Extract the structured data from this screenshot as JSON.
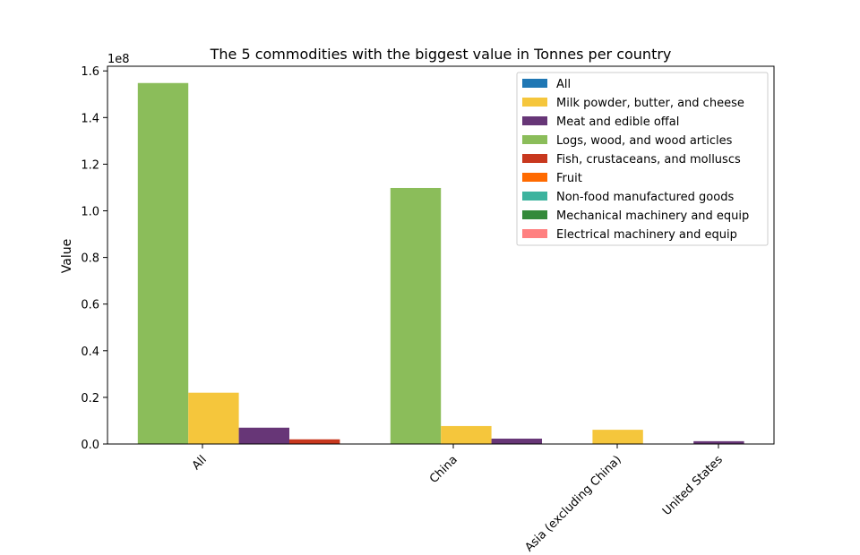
{
  "chart_data": {
    "type": "bar",
    "title": "The 5 commodities with the biggest value in Tonnes per country",
    "xlabel": "",
    "ylabel": "Value",
    "y_offset_text": "1e8",
    "y_scale": 100000000,
    "ylim": [
      0,
      162000000
    ],
    "yticks": [
      0,
      20000000,
      40000000,
      60000000,
      80000000,
      100000000,
      120000000,
      140000000,
      160000000
    ],
    "ytick_labels": [
      "0.0",
      "0.2",
      "0.4",
      "0.6",
      "0.8",
      "1.0",
      "1.2",
      "1.4",
      "1.6"
    ],
    "grid": false,
    "legend_position": "top-right",
    "categories": [
      "All",
      "China",
      "Asia (excluding China)",
      "United States"
    ],
    "series": [
      {
        "name": "All",
        "color": "#1f77b4",
        "values": [
          null,
          null,
          null,
          null
        ]
      },
      {
        "name": "Milk powder, butter, and cheese",
        "color": "#f5c63c",
        "values": [
          22000000,
          7700000,
          6100000,
          null
        ]
      },
      {
        "name": "Meat and edible offal",
        "color": "#673677",
        "values": [
          7000000,
          2300000,
          null,
          1200000
        ]
      },
      {
        "name": "Logs, wood, and wood articles",
        "color": "#8bbd5a",
        "values": [
          154800000,
          109800000,
          null,
          null
        ]
      },
      {
        "name": "Fish, crustaceans, and molluscs",
        "color": "#c8381e",
        "values": [
          2000000,
          null,
          null,
          null
        ]
      },
      {
        "name": "Fruit",
        "color": "#ff6a00",
        "values": [
          null,
          null,
          null,
          null
        ]
      },
      {
        "name": "Non-food manufactured goods",
        "color": "#3db39e",
        "values": [
          null,
          null,
          null,
          null
        ]
      },
      {
        "name": "Mechanical machinery and equip",
        "color": "#348a3a",
        "values": [
          null,
          null,
          null,
          null
        ]
      },
      {
        "name": "Electrical machinery and equip",
        "color": "#ff8080",
        "values": [
          null,
          null,
          null,
          null
        ]
      }
    ]
  }
}
